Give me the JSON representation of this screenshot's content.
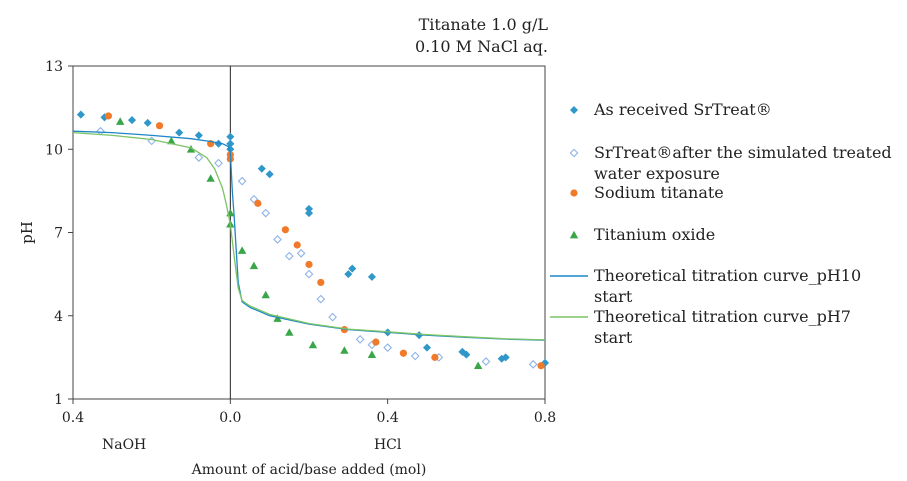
{
  "chart_data": {
    "type": "scatter",
    "title_lines": [
      "Titanate 1.0 g/L",
      "0.10 M NaCl aq."
    ],
    "xlabel": "Amount of acid/base added (mol)",
    "ylabel": "pH",
    "x_range": [
      -0.4,
      0.8
    ],
    "ylim": [
      1,
      13
    ],
    "x_ticks": [
      {
        "value": -0.4,
        "label": "0.4"
      },
      {
        "value": 0.0,
        "label": "0.0"
      },
      {
        "value": 0.4,
        "label": "0.4"
      },
      {
        "value": 0.8,
        "label": "0.8"
      }
    ],
    "y_ticks": [
      {
        "value": 1,
        "label": "1"
      },
      {
        "value": 4,
        "label": "4"
      },
      {
        "value": 7,
        "label": "7"
      },
      {
        "value": 10,
        "label": "10"
      },
      {
        "value": 13,
        "label": "13"
      }
    ],
    "region_labels": [
      {
        "text": "NaOH",
        "x": -0.27
      },
      {
        "text": "HCl",
        "x": 0.4
      }
    ],
    "grid": false,
    "legend_position": "right",
    "series": [
      {
        "name": "As received SrTreat®",
        "marker": "diamond",
        "color": "#2f97c9",
        "points": [
          [
            -0.38,
            11.25
          ],
          [
            -0.32,
            11.15
          ],
          [
            -0.25,
            11.05
          ],
          [
            -0.21,
            10.95
          ],
          [
            -0.13,
            10.6
          ],
          [
            -0.08,
            10.5
          ],
          [
            -0.03,
            10.2
          ],
          [
            0.0,
            10.45
          ],
          [
            0.0,
            10.2
          ],
          [
            0.0,
            10.0
          ],
          [
            0.08,
            9.3
          ],
          [
            0.1,
            9.1
          ],
          [
            0.2,
            7.85
          ],
          [
            0.2,
            7.7
          ],
          [
            0.3,
            5.5
          ],
          [
            0.31,
            5.7
          ],
          [
            0.36,
            5.4
          ],
          [
            0.4,
            3.4
          ],
          [
            0.48,
            3.3
          ],
          [
            0.5,
            2.85
          ],
          [
            0.59,
            2.7
          ],
          [
            0.6,
            2.6
          ],
          [
            0.69,
            2.45
          ],
          [
            0.7,
            2.5
          ],
          [
            0.8,
            2.3
          ]
        ]
      },
      {
        "name_lines": [
          "SrTreat®after the simulated treated",
          "water exposure"
        ],
        "marker": "open-diamond",
        "color": "#8fb3e8",
        "points": [
          [
            -0.33,
            10.65
          ],
          [
            -0.2,
            10.3
          ],
          [
            -0.08,
            9.7
          ],
          [
            -0.03,
            9.5
          ],
          [
            0.03,
            8.85
          ],
          [
            0.06,
            8.2
          ],
          [
            0.09,
            7.7
          ],
          [
            0.12,
            6.75
          ],
          [
            0.15,
            6.15
          ],
          [
            0.18,
            6.25
          ],
          [
            0.2,
            5.5
          ],
          [
            0.23,
            4.6
          ],
          [
            0.26,
            3.95
          ],
          [
            0.33,
            3.15
          ],
          [
            0.36,
            2.95
          ],
          [
            0.4,
            2.85
          ],
          [
            0.47,
            2.55
          ],
          [
            0.53,
            2.5
          ],
          [
            0.65,
            2.35
          ],
          [
            0.77,
            2.25
          ]
        ]
      },
      {
        "name": "Sodium titanate",
        "marker": "circle",
        "color": "#f07a2a",
        "points": [
          [
            -0.31,
            11.2
          ],
          [
            -0.18,
            10.85
          ],
          [
            -0.05,
            10.2
          ],
          [
            0.0,
            9.8
          ],
          [
            0.0,
            9.65
          ],
          [
            0.07,
            8.05
          ],
          [
            0.14,
            7.1
          ],
          [
            0.17,
            6.55
          ],
          [
            0.2,
            5.85
          ],
          [
            0.23,
            5.2
          ],
          [
            0.29,
            3.5
          ],
          [
            0.37,
            3.05
          ],
          [
            0.44,
            2.65
          ],
          [
            0.52,
            2.5
          ],
          [
            0.79,
            2.2
          ]
        ]
      },
      {
        "name": "Titanium oxide",
        "marker": "triangle",
        "color": "#3aa64a",
        "points": [
          [
            -0.28,
            11.0
          ],
          [
            -0.15,
            10.3
          ],
          [
            -0.1,
            10.0
          ],
          [
            -0.05,
            8.95
          ],
          [
            0.0,
            7.7
          ],
          [
            0.0,
            7.3
          ],
          [
            0.03,
            6.35
          ],
          [
            0.06,
            5.8
          ],
          [
            0.09,
            4.75
          ],
          [
            0.12,
            3.9
          ],
          [
            0.15,
            3.4
          ],
          [
            0.21,
            2.95
          ],
          [
            0.29,
            2.75
          ],
          [
            0.36,
            2.6
          ],
          [
            0.63,
            2.2
          ]
        ]
      },
      {
        "name_lines": [
          "Theoretical titration curve_pH10",
          "start"
        ],
        "marker": "line",
        "color": "#1d87c7",
        "points": [
          [
            -0.4,
            10.65
          ],
          [
            -0.3,
            10.6
          ],
          [
            -0.2,
            10.5
          ],
          [
            -0.1,
            10.38
          ],
          [
            -0.05,
            10.28
          ],
          [
            -0.02,
            10.2
          ],
          [
            -0.005,
            10.1
          ],
          [
            0.0,
            9.9
          ],
          [
            0.005,
            8.5
          ],
          [
            0.01,
            7.5
          ],
          [
            0.02,
            5.2
          ],
          [
            0.03,
            4.5
          ],
          [
            0.05,
            4.3
          ],
          [
            0.1,
            4.0
          ],
          [
            0.2,
            3.7
          ],
          [
            0.3,
            3.5
          ],
          [
            0.4,
            3.4
          ],
          [
            0.5,
            3.3
          ],
          [
            0.6,
            3.22
          ],
          [
            0.7,
            3.16
          ],
          [
            0.8,
            3.12
          ]
        ]
      },
      {
        "name_lines": [
          "Theoretical titration curve_pH7",
          "start"
        ],
        "marker": "line",
        "color": "#7cc466",
        "points": [
          [
            -0.4,
            10.6
          ],
          [
            -0.3,
            10.5
          ],
          [
            -0.2,
            10.35
          ],
          [
            -0.1,
            10.05
          ],
          [
            -0.06,
            9.7
          ],
          [
            -0.04,
            9.3
          ],
          [
            -0.02,
            8.6
          ],
          [
            -0.01,
            8.0
          ],
          [
            0.0,
            7.3
          ],
          [
            0.01,
            6.1
          ],
          [
            0.02,
            5.0
          ],
          [
            0.03,
            4.55
          ],
          [
            0.05,
            4.35
          ],
          [
            0.1,
            4.05
          ],
          [
            0.2,
            3.72
          ],
          [
            0.3,
            3.52
          ],
          [
            0.4,
            3.42
          ],
          [
            0.5,
            3.32
          ],
          [
            0.6,
            3.24
          ],
          [
            0.7,
            3.17
          ],
          [
            0.8,
            3.13
          ]
        ]
      }
    ]
  }
}
